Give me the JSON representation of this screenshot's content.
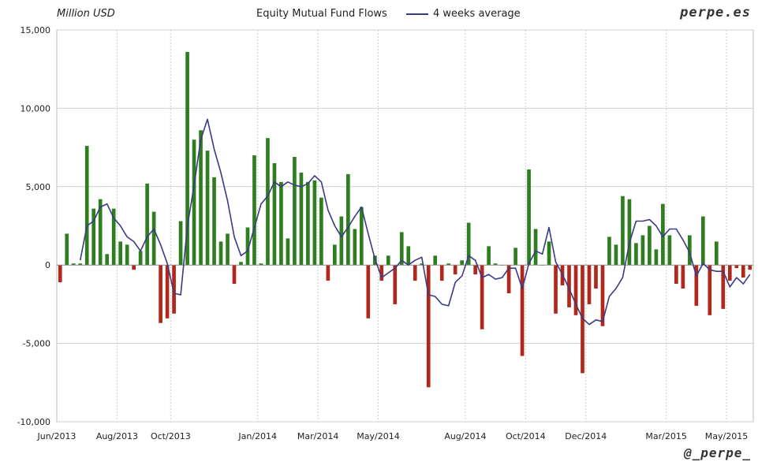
{
  "header": {
    "unit_label": "Million USD",
    "title": "Equity Mutual Fund Flows",
    "legend_label": "4 weeks average",
    "brand": "perpe.es",
    "handle": "@_perpe_"
  },
  "colors": {
    "positive": "#2e7d1f",
    "negative": "#b0281c",
    "average": "#3a3a86",
    "grid": "#cfcfcf"
  },
  "chart_data": {
    "type": "bar",
    "title": "Equity Mutual Fund Flows",
    "ylabel": "Million USD",
    "ylim": [
      -10000,
      15000
    ],
    "yticks": [
      15000,
      10000,
      5000,
      0,
      -5000,
      -10000
    ],
    "ytick_labels": [
      "15,000",
      "10,000",
      "5,000",
      "0",
      "-5,000",
      "-10,000"
    ],
    "xticks": [
      {
        "label": "Jun/2013",
        "week": 0
      },
      {
        "label": "Aug/2013",
        "week": 9
      },
      {
        "label": "Oct/2013",
        "week": 17
      },
      {
        "label": "Jan/2014",
        "week": 30
      },
      {
        "label": "Mar/2014",
        "week": 39
      },
      {
        "label": "May/2014",
        "week": 48
      },
      {
        "label": "Aug/2014",
        "week": 61
      },
      {
        "label": "Oct/2014",
        "week": 70
      },
      {
        "label": "Dec/2014",
        "week": 79
      },
      {
        "label": "Mar/2015",
        "week": 91
      },
      {
        "label": "May/2015",
        "week": 100
      }
    ],
    "grid": true,
    "legend": "top-center",
    "series": [
      {
        "name": "Equity Mutual Fund Flows",
        "type": "bar",
        "values": [
          -1100,
          2000,
          100,
          100,
          7600,
          3600,
          4200,
          700,
          3600,
          1500,
          1300,
          -300,
          900,
          5200,
          3400,
          -3700,
          -3400,
          -3100,
          2800,
          13600,
          8000,
          8600,
          7300,
          5600,
          1500,
          2000,
          -1200,
          200,
          2400,
          7000,
          100,
          8100,
          6500,
          5300,
          1700,
          6900,
          5900,
          5300,
          5400,
          4300,
          -1000,
          1300,
          3100,
          5800,
          2300,
          3700,
          -3400,
          600,
          -1000,
          600,
          -2500,
          2100,
          1200,
          -1000,
          100,
          -7800,
          600,
          -1000,
          100,
          -600,
          300,
          2700,
          -600,
          -4100,
          1200,
          100,
          0,
          -1800,
          1100,
          -5800,
          6100,
          2300,
          0,
          1500,
          -3100,
          -1300,
          -2700,
          -3200,
          -6900,
          -2500,
          -1500,
          -3900,
          1800,
          1300,
          4400,
          4200,
          1400,
          1900,
          2500,
          1000,
          3900,
          1900,
          -1200,
          -1500,
          1900,
          -2600,
          3100,
          -3200,
          1500,
          -2800,
          -1000,
          -200,
          -800,
          -300
        ]
      },
      {
        "name": "4 weeks average",
        "type": "line",
        "values": [
          null,
          null,
          null,
          300,
          2500,
          2800,
          3700,
          3900,
          3000,
          2500,
          1800,
          1500,
          900,
          1800,
          2300,
          1300,
          100,
          -1800,
          -1900,
          2500,
          5100,
          8000,
          9300,
          7400,
          5900,
          4100,
          1800,
          600,
          900,
          2400,
          3900,
          4400,
          5300,
          5000,
          5300,
          5100,
          5000,
          5200,
          5700,
          5300,
          3500,
          2500,
          1800,
          2400,
          3100,
          3700,
          2000,
          400,
          -800,
          -500,
          -200,
          300,
          0,
          300,
          500,
          -1900,
          -2000,
          -2500,
          -2600,
          -1100,
          -700,
          600,
          300,
          -800,
          -600,
          -900,
          -800,
          -200,
          -200,
          -1500,
          100,
          900,
          700,
          2400,
          200,
          -600,
          -1500,
          -2500,
          -3400,
          -3800,
          -3500,
          -3600,
          -2000,
          -1500,
          -800,
          1400,
          2800,
          2800,
          2900,
          2500,
          1800,
          2300,
          2300,
          1600,
          800,
          -700,
          100,
          -300,
          -400,
          -400,
          -1400,
          -800,
          -1200,
          -600
        ]
      }
    ]
  }
}
